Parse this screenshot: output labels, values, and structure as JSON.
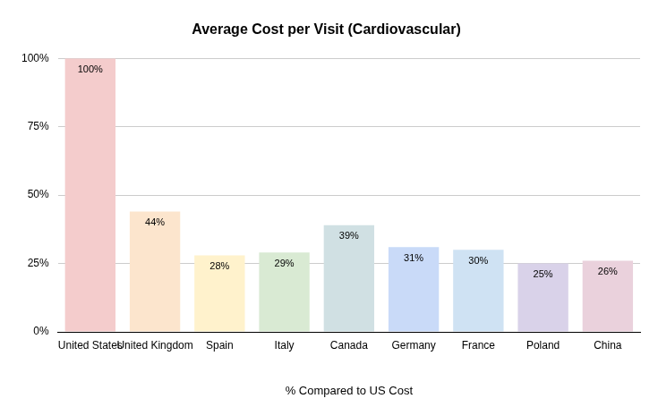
{
  "chart_data": {
    "type": "bar",
    "title": "Average Cost per Visit (Cardiovascular)",
    "x_label": "% Compared to US Cost",
    "categories": [
      "United States",
      "United Kingdom",
      "Spain",
      "Italy",
      "Canada",
      "Germany",
      "France",
      "Poland",
      "China"
    ],
    "values": [
      100,
      44,
      28,
      29,
      39,
      31,
      30,
      25,
      26
    ],
    "value_labels": [
      "100%",
      "44%",
      "28%",
      "29%",
      "39%",
      "31%",
      "30%",
      "25%",
      "26%"
    ],
    "colors": [
      "#f4cccc",
      "#fce5cd",
      "#fff2cc",
      "#d9ead3",
      "#d0e0e3",
      "#c9daf8",
      "#cfe2f3",
      "#d9d2e9",
      "#ead1dc"
    ],
    "ylim": [
      0,
      100
    ],
    "yticks": [
      {
        "value": 0,
        "label": "0%"
      },
      {
        "value": 25,
        "label": "25%"
      },
      {
        "value": 50,
        "label": "50%"
      },
      {
        "value": 75,
        "label": "75%"
      },
      {
        "value": 100,
        "label": "100%"
      }
    ],
    "grid": true,
    "data_labels": true
  }
}
